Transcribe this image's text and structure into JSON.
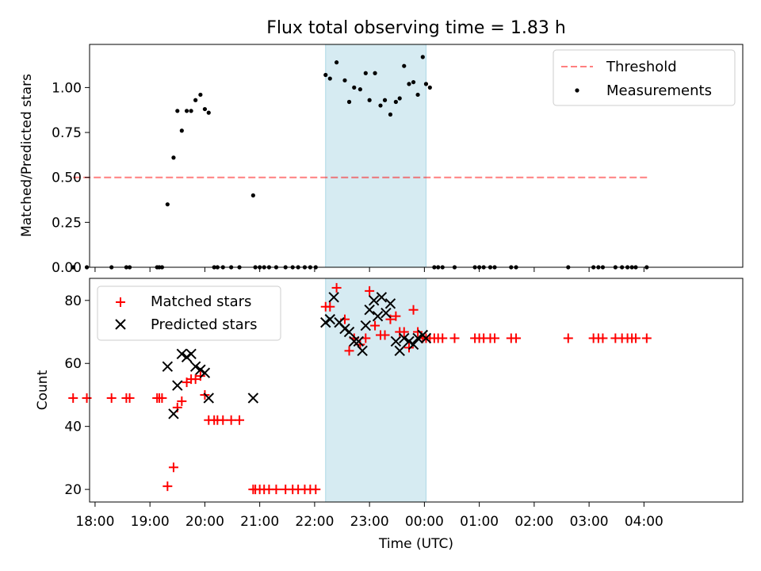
{
  "chart_data": [
    {
      "type": "scatter",
      "title": "Flux total observing time = 1.83 h",
      "ylabel": "Matched/Predicted stars",
      "xlabel": "",
      "x_unit": "hours since 17:00 UTC",
      "xlim": [
        0.9,
        12.8
      ],
      "ylim": [
        0,
        1.24
      ],
      "yticks": [
        0.0,
        0.25,
        0.5,
        0.75,
        1.0
      ],
      "ytick_labels": [
        "0.00",
        "0.25",
        "0.50",
        "0.75",
        "1.00"
      ],
      "xticks": [
        1,
        2,
        3,
        4,
        5,
        6,
        7,
        8,
        9,
        10,
        11
      ],
      "highlight_band": {
        "x0": 5.2,
        "x1": 7.03,
        "color": "#add8e6"
      },
      "legend": {
        "placement": "top-right"
      },
      "series": [
        {
          "name": "Threshold",
          "kind": "dashed-line",
          "color": "#ff0000",
          "alpha": 0.5,
          "x": [
            0.6,
            11.1
          ],
          "y": [
            0.5,
            0.5
          ]
        },
        {
          "name": "Measurements",
          "kind": "dot",
          "color": "#000000",
          "x": [
            0.6,
            0.85,
            1.3,
            1.57,
            1.63,
            2.13,
            2.17,
            2.22,
            2.32,
            2.43,
            2.5,
            2.58,
            2.67,
            2.75,
            2.83,
            2.92,
            3.0,
            3.07,
            3.17,
            3.23,
            3.33,
            3.48,
            3.63,
            3.88,
            3.92,
            4.0,
            4.08,
            4.17,
            4.3,
            4.47,
            4.6,
            4.7,
            4.82,
            4.92,
            5.02,
            5.2,
            5.28,
            5.4,
            5.55,
            5.63,
            5.72,
            5.83,
            5.93,
            6.0,
            6.1,
            6.2,
            6.28,
            6.38,
            6.48,
            6.55,
            6.63,
            6.72,
            6.8,
            6.88,
            6.97,
            7.03,
            7.1,
            7.18,
            7.25,
            7.33,
            7.55,
            7.92,
            8.0,
            8.08,
            8.2,
            8.28,
            8.58,
            8.67,
            9.62,
            10.08,
            10.17,
            10.25,
            10.48,
            10.6,
            10.7,
            10.78,
            10.85,
            11.05
          ],
          "y": [
            0.0,
            0.0,
            0.0,
            0.0,
            0.0,
            0.0,
            0.0,
            0.0,
            0.35,
            0.61,
            0.87,
            0.76,
            0.87,
            0.87,
            0.93,
            0.96,
            0.88,
            0.86,
            0.0,
            0.0,
            0.0,
            0.0,
            0.0,
            0.4,
            0.0,
            0.0,
            0.0,
            0.0,
            0.0,
            0.0,
            0.0,
            0.0,
            0.0,
            0.0,
            0.0,
            1.07,
            1.05,
            1.14,
            1.04,
            0.92,
            1.0,
            0.99,
            1.08,
            0.93,
            1.08,
            0.9,
            0.93,
            0.85,
            0.92,
            0.94,
            1.12,
            1.02,
            1.03,
            0.96,
            1.17,
            1.02,
            1.0,
            0.0,
            0.0,
            0.0,
            0.0,
            0.0,
            0.0,
            0.0,
            0.0,
            0.0,
            0.0,
            0.0,
            0.0,
            0.0,
            0.0,
            0.0,
            0.0,
            0.0,
            0.0,
            0.0,
            0.0,
            0.0
          ]
        }
      ]
    },
    {
      "type": "scatter",
      "title": "",
      "ylabel": "Count",
      "xlabel": "Time (UTC)",
      "x_unit": "hours since 17:00 UTC",
      "xlim": [
        0.9,
        12.8
      ],
      "ylim": [
        16,
        87
      ],
      "yticks": [
        20,
        40,
        60,
        80
      ],
      "ytick_labels": [
        "20",
        "40",
        "60",
        "80"
      ],
      "xticks": [
        1,
        2,
        3,
        4,
        5,
        6,
        7,
        8,
        9,
        10,
        11
      ],
      "xtick_labels": [
        "18:00",
        "19:00",
        "20:00",
        "21:00",
        "22:00",
        "23:00",
        "00:00",
        "01:00",
        "02:00",
        "03:00",
        "04:00"
      ],
      "highlight_band": {
        "x0": 5.2,
        "x1": 7.03,
        "color": "#add8e6"
      },
      "legend": {
        "placement": "top-left"
      },
      "series": [
        {
          "name": "Matched stars",
          "kind": "plus",
          "color": "#ff0000",
          "x": [
            0.6,
            0.85,
            1.3,
            1.57,
            1.63,
            2.13,
            2.17,
            2.22,
            2.32,
            2.43,
            2.5,
            2.58,
            2.67,
            2.75,
            2.83,
            2.92,
            3.0,
            3.07,
            3.17,
            3.23,
            3.33,
            3.48,
            3.63,
            3.88,
            3.92,
            4.0,
            4.08,
            4.17,
            4.3,
            4.47,
            4.6,
            4.7,
            4.82,
            4.92,
            5.02,
            5.2,
            5.28,
            5.4,
            5.55,
            5.63,
            5.72,
            5.83,
            5.93,
            6.0,
            6.1,
            6.2,
            6.28,
            6.38,
            6.48,
            6.55,
            6.63,
            6.72,
            6.8,
            6.88,
            6.97,
            7.03,
            7.1,
            7.18,
            7.25,
            7.33,
            7.55,
            7.92,
            8.0,
            8.08,
            8.2,
            8.28,
            8.58,
            8.67,
            9.62,
            10.08,
            10.17,
            10.25,
            10.48,
            10.6,
            10.7,
            10.78,
            10.85,
            11.05
          ],
          "y": [
            49,
            49,
            49,
            49,
            49,
            49,
            49,
            49,
            21,
            27,
            46,
            48,
            54,
            55,
            55,
            56,
            50,
            42,
            42,
            42,
            42,
            42,
            42,
            20,
            20,
            20,
            20,
            20,
            20,
            20,
            20,
            20,
            20,
            20,
            20,
            78,
            78,
            84,
            74,
            64,
            68,
            66,
            68,
            83,
            72,
            69,
            69,
            74,
            75,
            70,
            70,
            65,
            77,
            70,
            68,
            68,
            68,
            68,
            68,
            68,
            68,
            68,
            68,
            68,
            68,
            68,
            68,
            68,
            68,
            68,
            68,
            68,
            68,
            68,
            68,
            68,
            68,
            68
          ]
        },
        {
          "name": "Predicted stars",
          "kind": "cross",
          "color": "#000000",
          "x": [
            2.32,
            2.43,
            2.5,
            2.58,
            2.67,
            2.75,
            2.83,
            2.92,
            3.0,
            3.07,
            3.88,
            5.2,
            5.28,
            5.35,
            5.45,
            5.55,
            5.63,
            5.72,
            5.8,
            5.87,
            5.93,
            6.0,
            6.08,
            6.15,
            6.22,
            6.3,
            6.38,
            6.48,
            6.55,
            6.63,
            6.72,
            6.8,
            6.88,
            6.97,
            7.03
          ],
          "y": [
            59,
            44,
            53,
            63,
            62,
            63,
            59,
            58,
            57,
            49,
            49,
            73,
            74,
            81,
            73,
            71,
            70,
            67,
            67,
            64,
            72,
            77,
            80,
            75,
            81,
            76,
            79,
            67,
            64,
            68,
            67,
            66,
            68,
            69,
            68
          ]
        }
      ]
    }
  ]
}
